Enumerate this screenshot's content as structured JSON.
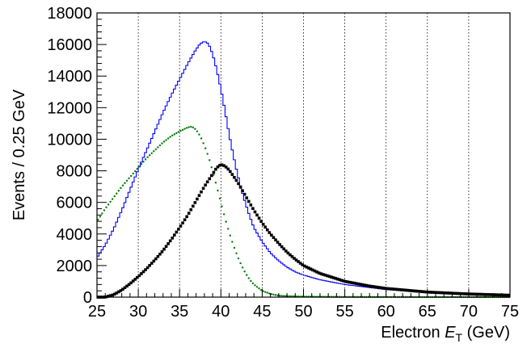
{
  "chart_data": {
    "type": "histogram",
    "xlabel_prefix": "Electron ",
    "xlabel_var": "E",
    "xlabel_sub": "T",
    "xlabel_suffix": " (GeV)",
    "ylabel": "Events / 0.25 GeV",
    "xlim": [
      25,
      75
    ],
    "ylim": [
      0,
      18000
    ],
    "x_ticks": [
      25,
      30,
      35,
      40,
      45,
      50,
      55,
      60,
      65,
      70,
      75
    ],
    "y_ticks": [
      0,
      2000,
      4000,
      6000,
      8000,
      10000,
      12000,
      14000,
      16000,
      18000
    ],
    "grid": "vertical dotted",
    "bin_width": 0.25,
    "series": [
      {
        "style": "step",
        "color": "#0000ff",
        "points": [
          [
            25,
            2500
          ],
          [
            26,
            3300
          ],
          [
            27,
            4300
          ],
          [
            28,
            5500
          ],
          [
            29,
            6800
          ],
          [
            30,
            8100
          ],
          [
            31,
            9300
          ],
          [
            32,
            10500
          ],
          [
            33,
            11700
          ],
          [
            34,
            12800
          ],
          [
            35,
            13800
          ],
          [
            36,
            14800
          ],
          [
            37,
            15700
          ],
          [
            37.5,
            16050
          ],
          [
            38,
            16200
          ],
          [
            38.5,
            16050
          ],
          [
            39,
            15400
          ],
          [
            39.5,
            14400
          ],
          [
            40,
            13200
          ],
          [
            40.5,
            11800
          ],
          [
            41,
            10300
          ],
          [
            41.5,
            9000
          ],
          [
            42,
            7800
          ],
          [
            42.5,
            6800
          ],
          [
            43,
            5900
          ],
          [
            43.5,
            5100
          ],
          [
            44,
            4400
          ],
          [
            45,
            3500
          ],
          [
            46,
            2800
          ],
          [
            47,
            2300
          ],
          [
            48,
            1900
          ],
          [
            49,
            1600
          ],
          [
            50,
            1400
          ],
          [
            52,
            1100
          ],
          [
            55,
            800
          ],
          [
            60,
            480
          ],
          [
            65,
            300
          ],
          [
            70,
            170
          ],
          [
            75,
            100
          ]
        ]
      },
      {
        "style": "dots",
        "color": "#007a00",
        "points": [
          [
            25,
            4800
          ],
          [
            26,
            5600
          ],
          [
            27,
            6300
          ],
          [
            28,
            7000
          ],
          [
            29,
            7600
          ],
          [
            30,
            8200
          ],
          [
            31,
            8800
          ],
          [
            32,
            9300
          ],
          [
            33,
            9800
          ],
          [
            34,
            10200
          ],
          [
            35,
            10500
          ],
          [
            36,
            10750
          ],
          [
            36.5,
            10800
          ],
          [
            37,
            10600
          ],
          [
            37.5,
            10200
          ],
          [
            38,
            9600
          ],
          [
            38.5,
            8900
          ],
          [
            39,
            8000
          ],
          [
            39.5,
            7000
          ],
          [
            40,
            6000
          ],
          [
            40.5,
            5000
          ],
          [
            41,
            4100
          ],
          [
            41.5,
            3300
          ],
          [
            42,
            2600
          ],
          [
            42.5,
            2000
          ],
          [
            43,
            1500
          ],
          [
            43.5,
            1100
          ],
          [
            44,
            800
          ],
          [
            45,
            400
          ],
          [
            46,
            200
          ],
          [
            47,
            100
          ],
          [
            48,
            60
          ],
          [
            50,
            30
          ],
          [
            55,
            10
          ],
          [
            75,
            0
          ]
        ]
      },
      {
        "style": "markers",
        "color": "#000000",
        "points": [
          [
            25,
            0
          ],
          [
            26,
            0
          ],
          [
            27,
            150
          ],
          [
            28,
            450
          ],
          [
            29,
            850
          ],
          [
            30,
            1300
          ],
          [
            31,
            1800
          ],
          [
            32,
            2350
          ],
          [
            33,
            2950
          ],
          [
            34,
            3650
          ],
          [
            35,
            4400
          ],
          [
            36,
            5200
          ],
          [
            37,
            6100
          ],
          [
            38,
            7000
          ],
          [
            39,
            7800
          ],
          [
            39.5,
            8200
          ],
          [
            40,
            8400
          ],
          [
            40.5,
            8300
          ],
          [
            41,
            8050
          ],
          [
            42,
            7300
          ],
          [
            43,
            6400
          ],
          [
            44,
            5500
          ],
          [
            45,
            4700
          ],
          [
            46,
            4000
          ],
          [
            47,
            3400
          ],
          [
            48,
            2850
          ],
          [
            49,
            2400
          ],
          [
            50,
            2000
          ],
          [
            52,
            1500
          ],
          [
            55,
            1000
          ],
          [
            58,
            700
          ],
          [
            60,
            550
          ],
          [
            65,
            320
          ],
          [
            70,
            200
          ],
          [
            75,
            120
          ]
        ]
      }
    ]
  }
}
